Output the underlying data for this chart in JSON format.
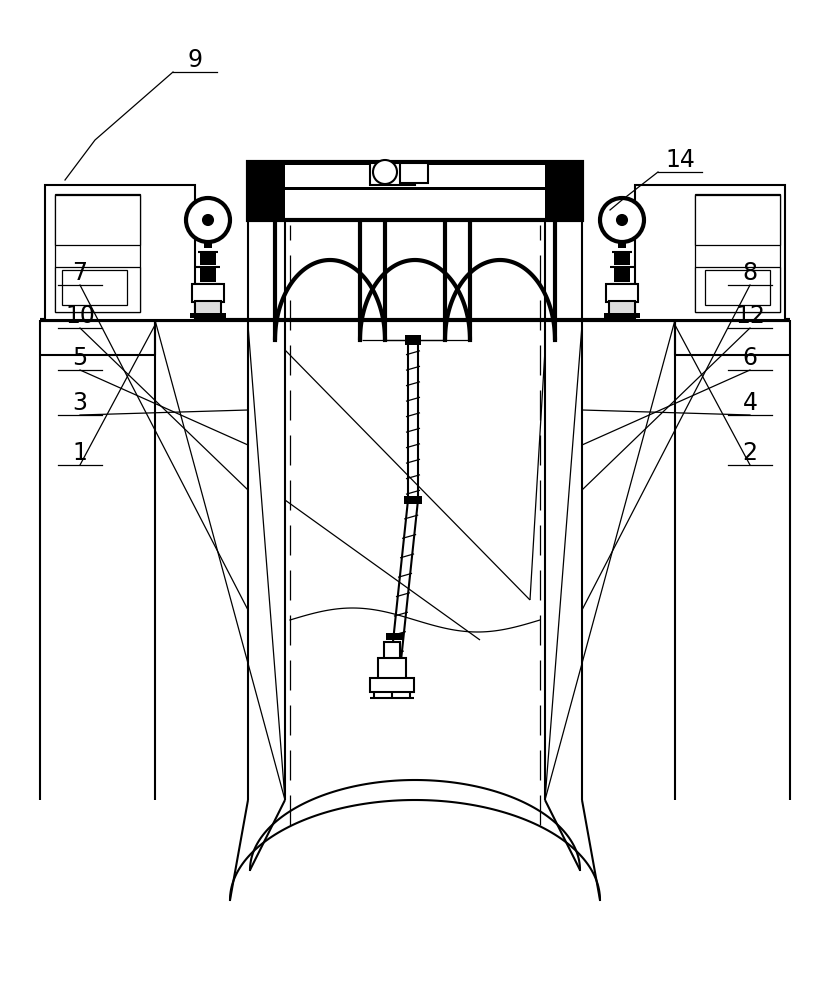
{
  "bg_color": "#ffffff",
  "line_color": "#000000",
  "label_color": "#000000",
  "figsize": [
    8.3,
    10.0
  ],
  "dpi": 100
}
